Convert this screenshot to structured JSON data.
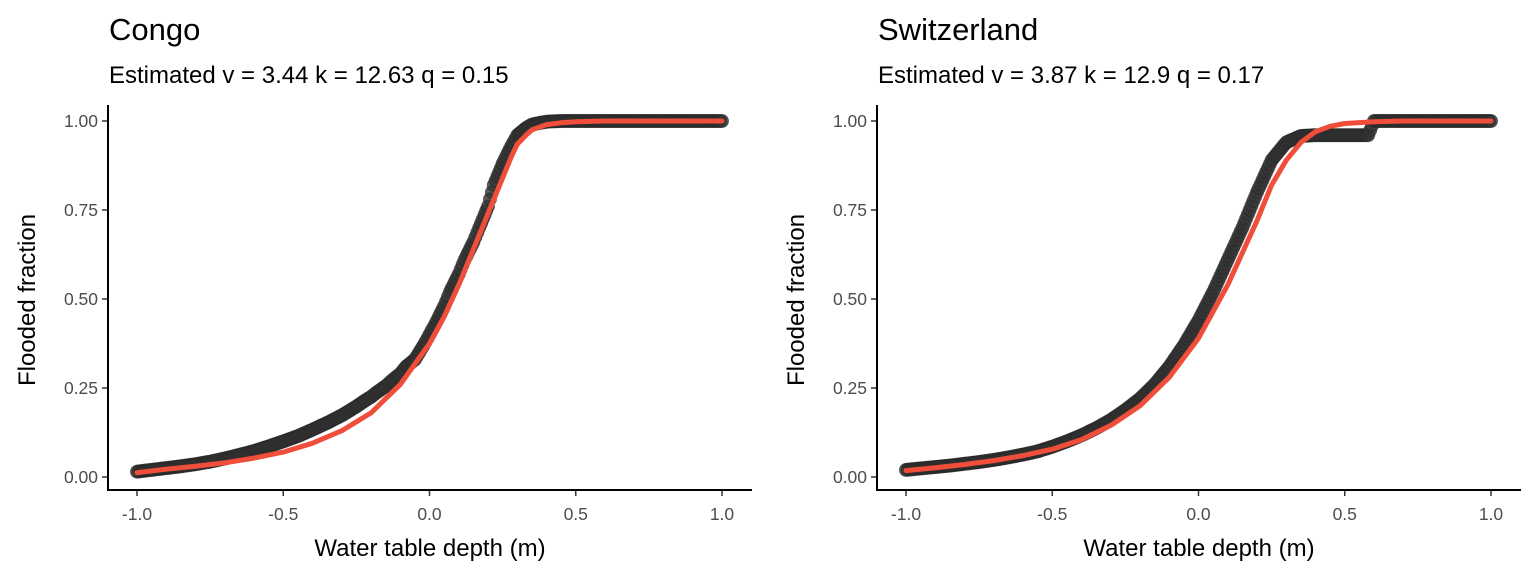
{
  "chart_data": [
    {
      "type": "scatter",
      "title": "Congo",
      "subtitle": "Estimated v = 3.44 k = 12.63 q = 0.15",
      "xlabel": "Water table depth (m)",
      "ylabel": "Flooded fraction",
      "xlim": [
        -1.0,
        1.0
      ],
      "ylim": [
        0.0,
        1.0
      ],
      "xticks": [
        -1.0,
        -0.5,
        0.0,
        0.5,
        1.0
      ],
      "xtick_labels": [
        "-1.0",
        "-0.5",
        "0.0",
        "0.5",
        "1.0"
      ],
      "yticks": [
        0.0,
        0.25,
        0.5,
        0.75,
        1.0
      ],
      "ytick_labels": [
        "0.00",
        "0.25",
        "0.50",
        "0.75",
        "1.00"
      ],
      "grid": false,
      "params": {
        "v": 3.44,
        "k": 12.63,
        "q": 0.15
      },
      "observed": {
        "x": [
          -1.0,
          -0.95,
          -0.9,
          -0.85,
          -0.8,
          -0.75,
          -0.7,
          -0.65,
          -0.6,
          -0.55,
          -0.5,
          -0.45,
          -0.4,
          -0.35,
          -0.3,
          -0.25,
          -0.22,
          -0.2,
          -0.18,
          -0.15,
          -0.13,
          -0.1,
          -0.08,
          -0.05,
          -0.02,
          0.0,
          0.02,
          0.05,
          0.07,
          0.1,
          0.12,
          0.15,
          0.17,
          0.2,
          0.22,
          0.25,
          0.28,
          0.3,
          0.33,
          0.35,
          0.38,
          0.4,
          0.45,
          0.5,
          0.55,
          0.6,
          0.7,
          0.8,
          0.9,
          0.95,
          1.0
        ],
        "y": [
          0.015,
          0.02,
          0.025,
          0.03,
          0.036,
          0.043,
          0.052,
          0.062,
          0.073,
          0.086,
          0.1,
          0.115,
          0.133,
          0.152,
          0.173,
          0.198,
          0.215,
          0.225,
          0.238,
          0.255,
          0.27,
          0.29,
          0.31,
          0.33,
          0.37,
          0.4,
          0.43,
          0.48,
          0.52,
          0.57,
          0.61,
          0.66,
          0.7,
          0.76,
          0.82,
          0.88,
          0.93,
          0.96,
          0.98,
          0.99,
          0.995,
          0.998,
          1.0,
          1.0,
          1.0,
          1.0,
          1.0,
          1.0,
          1.0,
          1.0,
          1.0
        ]
      },
      "fit": {
        "x": [
          -1.0,
          -0.9,
          -0.8,
          -0.7,
          -0.6,
          -0.5,
          -0.4,
          -0.3,
          -0.2,
          -0.1,
          0.0,
          0.05,
          0.1,
          0.15,
          0.2,
          0.25,
          0.28,
          0.3,
          0.33,
          0.35,
          0.4,
          0.45,
          0.5,
          0.6,
          0.7,
          0.8,
          0.9,
          1.0
        ],
        "y": [
          0.012,
          0.022,
          0.03,
          0.04,
          0.053,
          0.07,
          0.095,
          0.13,
          0.18,
          0.26,
          0.375,
          0.45,
          0.54,
          0.64,
          0.74,
          0.84,
          0.9,
          0.935,
          0.96,
          0.975,
          0.99,
          0.995,
          0.998,
          1.0,
          1.0,
          1.0,
          1.0,
          1.0
        ]
      }
    },
    {
      "type": "scatter",
      "title": "Switzerland",
      "subtitle": "Estimated v = 3.87 k = 12.9 q = 0.17",
      "xlabel": "Water table depth (m)",
      "ylabel": "Flooded fraction",
      "xlim": [
        -1.0,
        1.0
      ],
      "ylim": [
        0.0,
        1.0
      ],
      "xticks": [
        -1.0,
        -0.5,
        0.0,
        0.5,
        1.0
      ],
      "xtick_labels": [
        "-1.0",
        "-0.5",
        "0.0",
        "0.5",
        "1.0"
      ],
      "yticks": [
        0.0,
        0.25,
        0.5,
        0.75,
        1.0
      ],
      "ytick_labels": [
        "0.00",
        "0.25",
        "0.50",
        "0.75",
        "1.00"
      ],
      "grid": false,
      "params": {
        "v": 3.87,
        "k": 12.9,
        "q": 0.17
      },
      "observed": {
        "x": [
          -1.0,
          -0.95,
          -0.9,
          -0.85,
          -0.8,
          -0.75,
          -0.7,
          -0.65,
          -0.6,
          -0.55,
          -0.5,
          -0.45,
          -0.4,
          -0.35,
          -0.3,
          -0.25,
          -0.2,
          -0.15,
          -0.1,
          -0.05,
          0.0,
          0.05,
          0.1,
          0.15,
          0.2,
          0.25,
          0.3,
          0.35,
          0.4,
          0.45,
          0.5,
          0.55,
          0.58,
          0.6,
          0.65,
          0.7,
          0.8,
          0.9,
          1.0
        ],
        "y": [
          0.02,
          0.024,
          0.028,
          0.032,
          0.037,
          0.042,
          0.048,
          0.055,
          0.063,
          0.072,
          0.085,
          0.1,
          0.117,
          0.137,
          0.16,
          0.188,
          0.22,
          0.26,
          0.31,
          0.37,
          0.44,
          0.52,
          0.61,
          0.7,
          0.8,
          0.89,
          0.94,
          0.958,
          0.96,
          0.96,
          0.96,
          0.96,
          0.96,
          1.0,
          1.0,
          1.0,
          1.0,
          1.0,
          1.0
        ]
      },
      "fit": {
        "x": [
          -1.0,
          -0.9,
          -0.8,
          -0.7,
          -0.6,
          -0.5,
          -0.4,
          -0.3,
          -0.2,
          -0.1,
          0.0,
          0.1,
          0.2,
          0.25,
          0.3,
          0.35,
          0.4,
          0.45,
          0.5,
          0.6,
          0.7,
          0.8,
          0.9,
          1.0
        ],
        "y": [
          0.018,
          0.026,
          0.035,
          0.046,
          0.06,
          0.078,
          0.105,
          0.145,
          0.2,
          0.28,
          0.39,
          0.54,
          0.72,
          0.82,
          0.89,
          0.94,
          0.97,
          0.985,
          0.993,
          0.998,
          1.0,
          1.0,
          1.0,
          1.0
        ]
      }
    }
  ]
}
